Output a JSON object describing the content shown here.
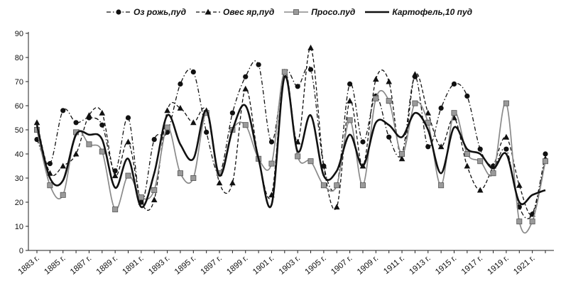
{
  "chart_data": {
    "type": "line",
    "title": "",
    "xlabel": "",
    "ylabel": "",
    "ylim": [
      0,
      90
    ],
    "yticks": [
      0,
      10,
      20,
      30,
      40,
      50,
      60,
      70,
      80,
      90
    ],
    "x": [
      1883,
      1884,
      1885,
      1886,
      1887,
      1888,
      1889,
      1890,
      1891,
      1892,
      1893,
      1894,
      1895,
      1896,
      1897,
      1898,
      1899,
      1900,
      1901,
      1902,
      1903,
      1904,
      1905,
      1906,
      1907,
      1908,
      1909,
      1910,
      1911,
      1912,
      1913,
      1914,
      1915,
      1916,
      1917,
      1918,
      1919,
      1920,
      1921,
      1922
    ],
    "x_tick_labels": [
      "1883 г.",
      "1885 г.",
      "1887 г.",
      "1889 г.",
      "1891 г.",
      "1893 г.",
      "1895 г.",
      "1897 г.",
      "1899 г.",
      "1901 г.",
      "1903 г.",
      "1905 г.",
      "1907 г.",
      "1909 г.",
      "1911 г.",
      "1913 г.",
      "1915 г.",
      "1917 г.",
      "1919 г.",
      "1921 г."
    ],
    "legend_position": "top",
    "grid": false,
    "series": [
      {
        "name": "Оз рожь,пуд",
        "marker": "circle",
        "style": "dash-dot",
        "color": "#111111",
        "values": [
          46,
          36,
          58,
          53,
          55,
          52,
          33,
          55,
          20,
          46,
          49,
          69,
          74,
          49,
          32,
          57,
          72,
          77,
          45,
          74,
          68,
          75,
          35,
          27,
          69,
          45,
          64,
          47,
          40,
          72,
          43,
          59,
          69,
          64,
          42,
          35,
          42,
          18,
          15,
          40
        ]
      },
      {
        "name": "Овес яр,пуд",
        "marker": "triangle",
        "style": "dash",
        "color": "#111111",
        "values": [
          53,
          32,
          35,
          40,
          56,
          57,
          31,
          45,
          20,
          21,
          58,
          59,
          53,
          58,
          28,
          28,
          67,
          38,
          23,
          74,
          45,
          84,
          35,
          18,
          62,
          35,
          71,
          70,
          38,
          73,
          57,
          43,
          55,
          35,
          25,
          35,
          47,
          27,
          15,
          38
        ]
      },
      {
        "name": "Просо.пуд",
        "marker": "square",
        "style": "solid",
        "color": "#8a8a8a",
        "values": [
          50,
          27,
          23,
          49,
          44,
          41,
          17,
          31,
          22,
          25,
          51,
          32,
          30,
          57,
          32,
          50,
          52,
          38,
          36,
          74,
          39,
          37,
          27,
          27,
          54,
          27,
          63,
          62,
          40,
          61,
          53,
          27,
          57,
          40,
          37,
          32,
          61,
          12,
          12,
          37
        ]
      },
      {
        "name": "Картофель,10 пуд",
        "marker": "none",
        "style": "solid-thick",
        "color": "#111111",
        "values": [
          52,
          30,
          29,
          48,
          48,
          46,
          26,
          38,
          18,
          32,
          56,
          44,
          38,
          58,
          31,
          50,
          60,
          38,
          19,
          72,
          41,
          56,
          31,
          33,
          48,
          35,
          53,
          52,
          47,
          57,
          50,
          32,
          51,
          42,
          40,
          34,
          40,
          20,
          23,
          25
        ]
      }
    ]
  }
}
